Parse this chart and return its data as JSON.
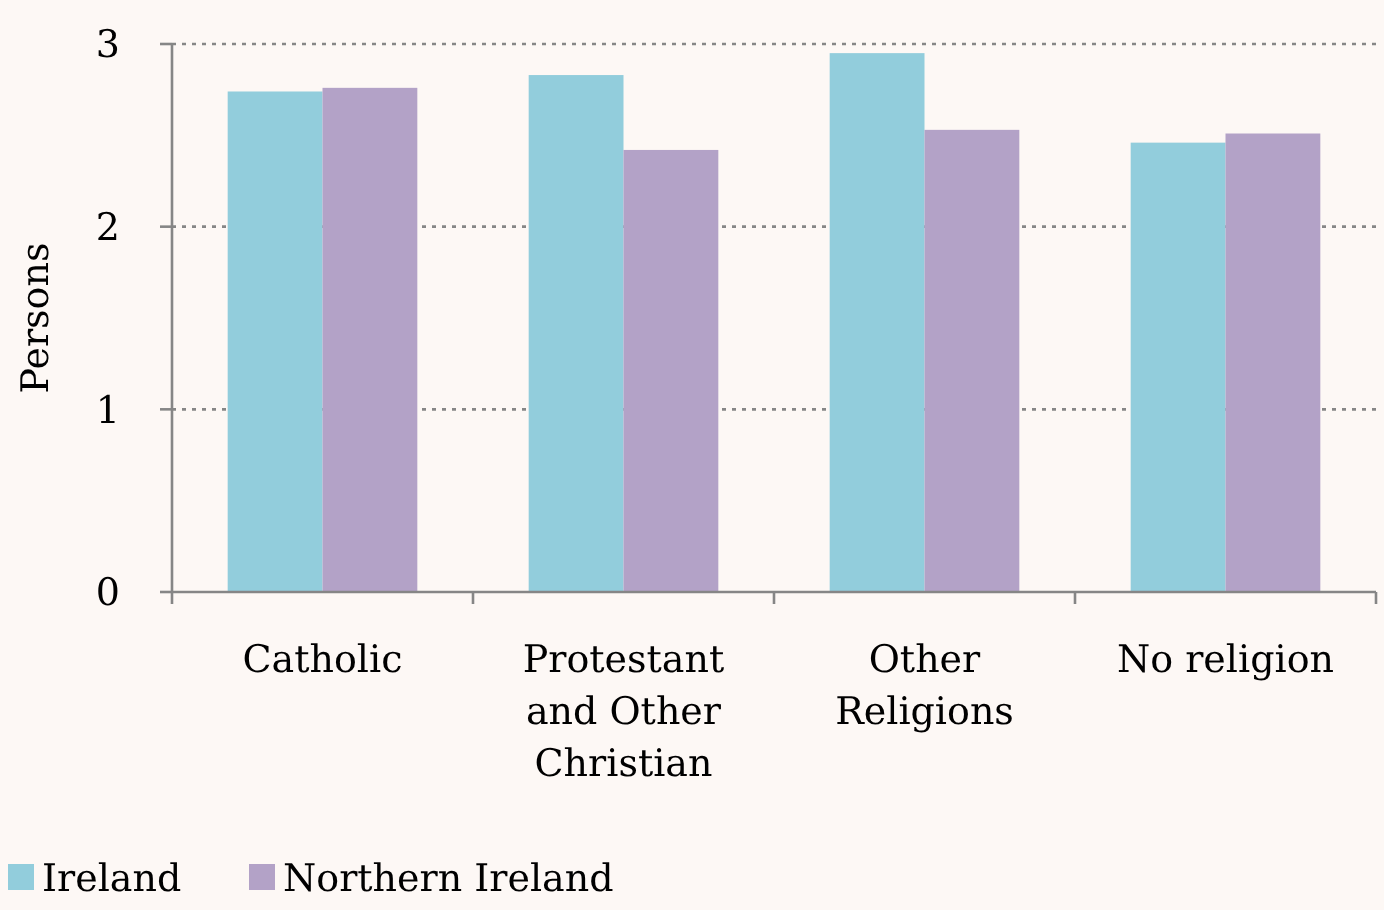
{
  "chart_data": {
    "type": "bar",
    "ylabel": "Persons",
    "categories": [
      "Catholic",
      "Protestant and Other Christian",
      "Other Religions",
      "No religion"
    ],
    "series": [
      {
        "name": "Ireland",
        "color": "#92cddc",
        "values": [
          2.74,
          2.83,
          2.95,
          2.46
        ]
      },
      {
        "name": "Northern Ireland",
        "color": "#b3a2c7",
        "values": [
          2.76,
          2.42,
          2.53,
          2.51
        ]
      }
    ],
    "ylim": [
      0,
      3
    ],
    "yticks": [
      0,
      1,
      2,
      3
    ],
    "grid": "y",
    "legend": "bottom left"
  }
}
